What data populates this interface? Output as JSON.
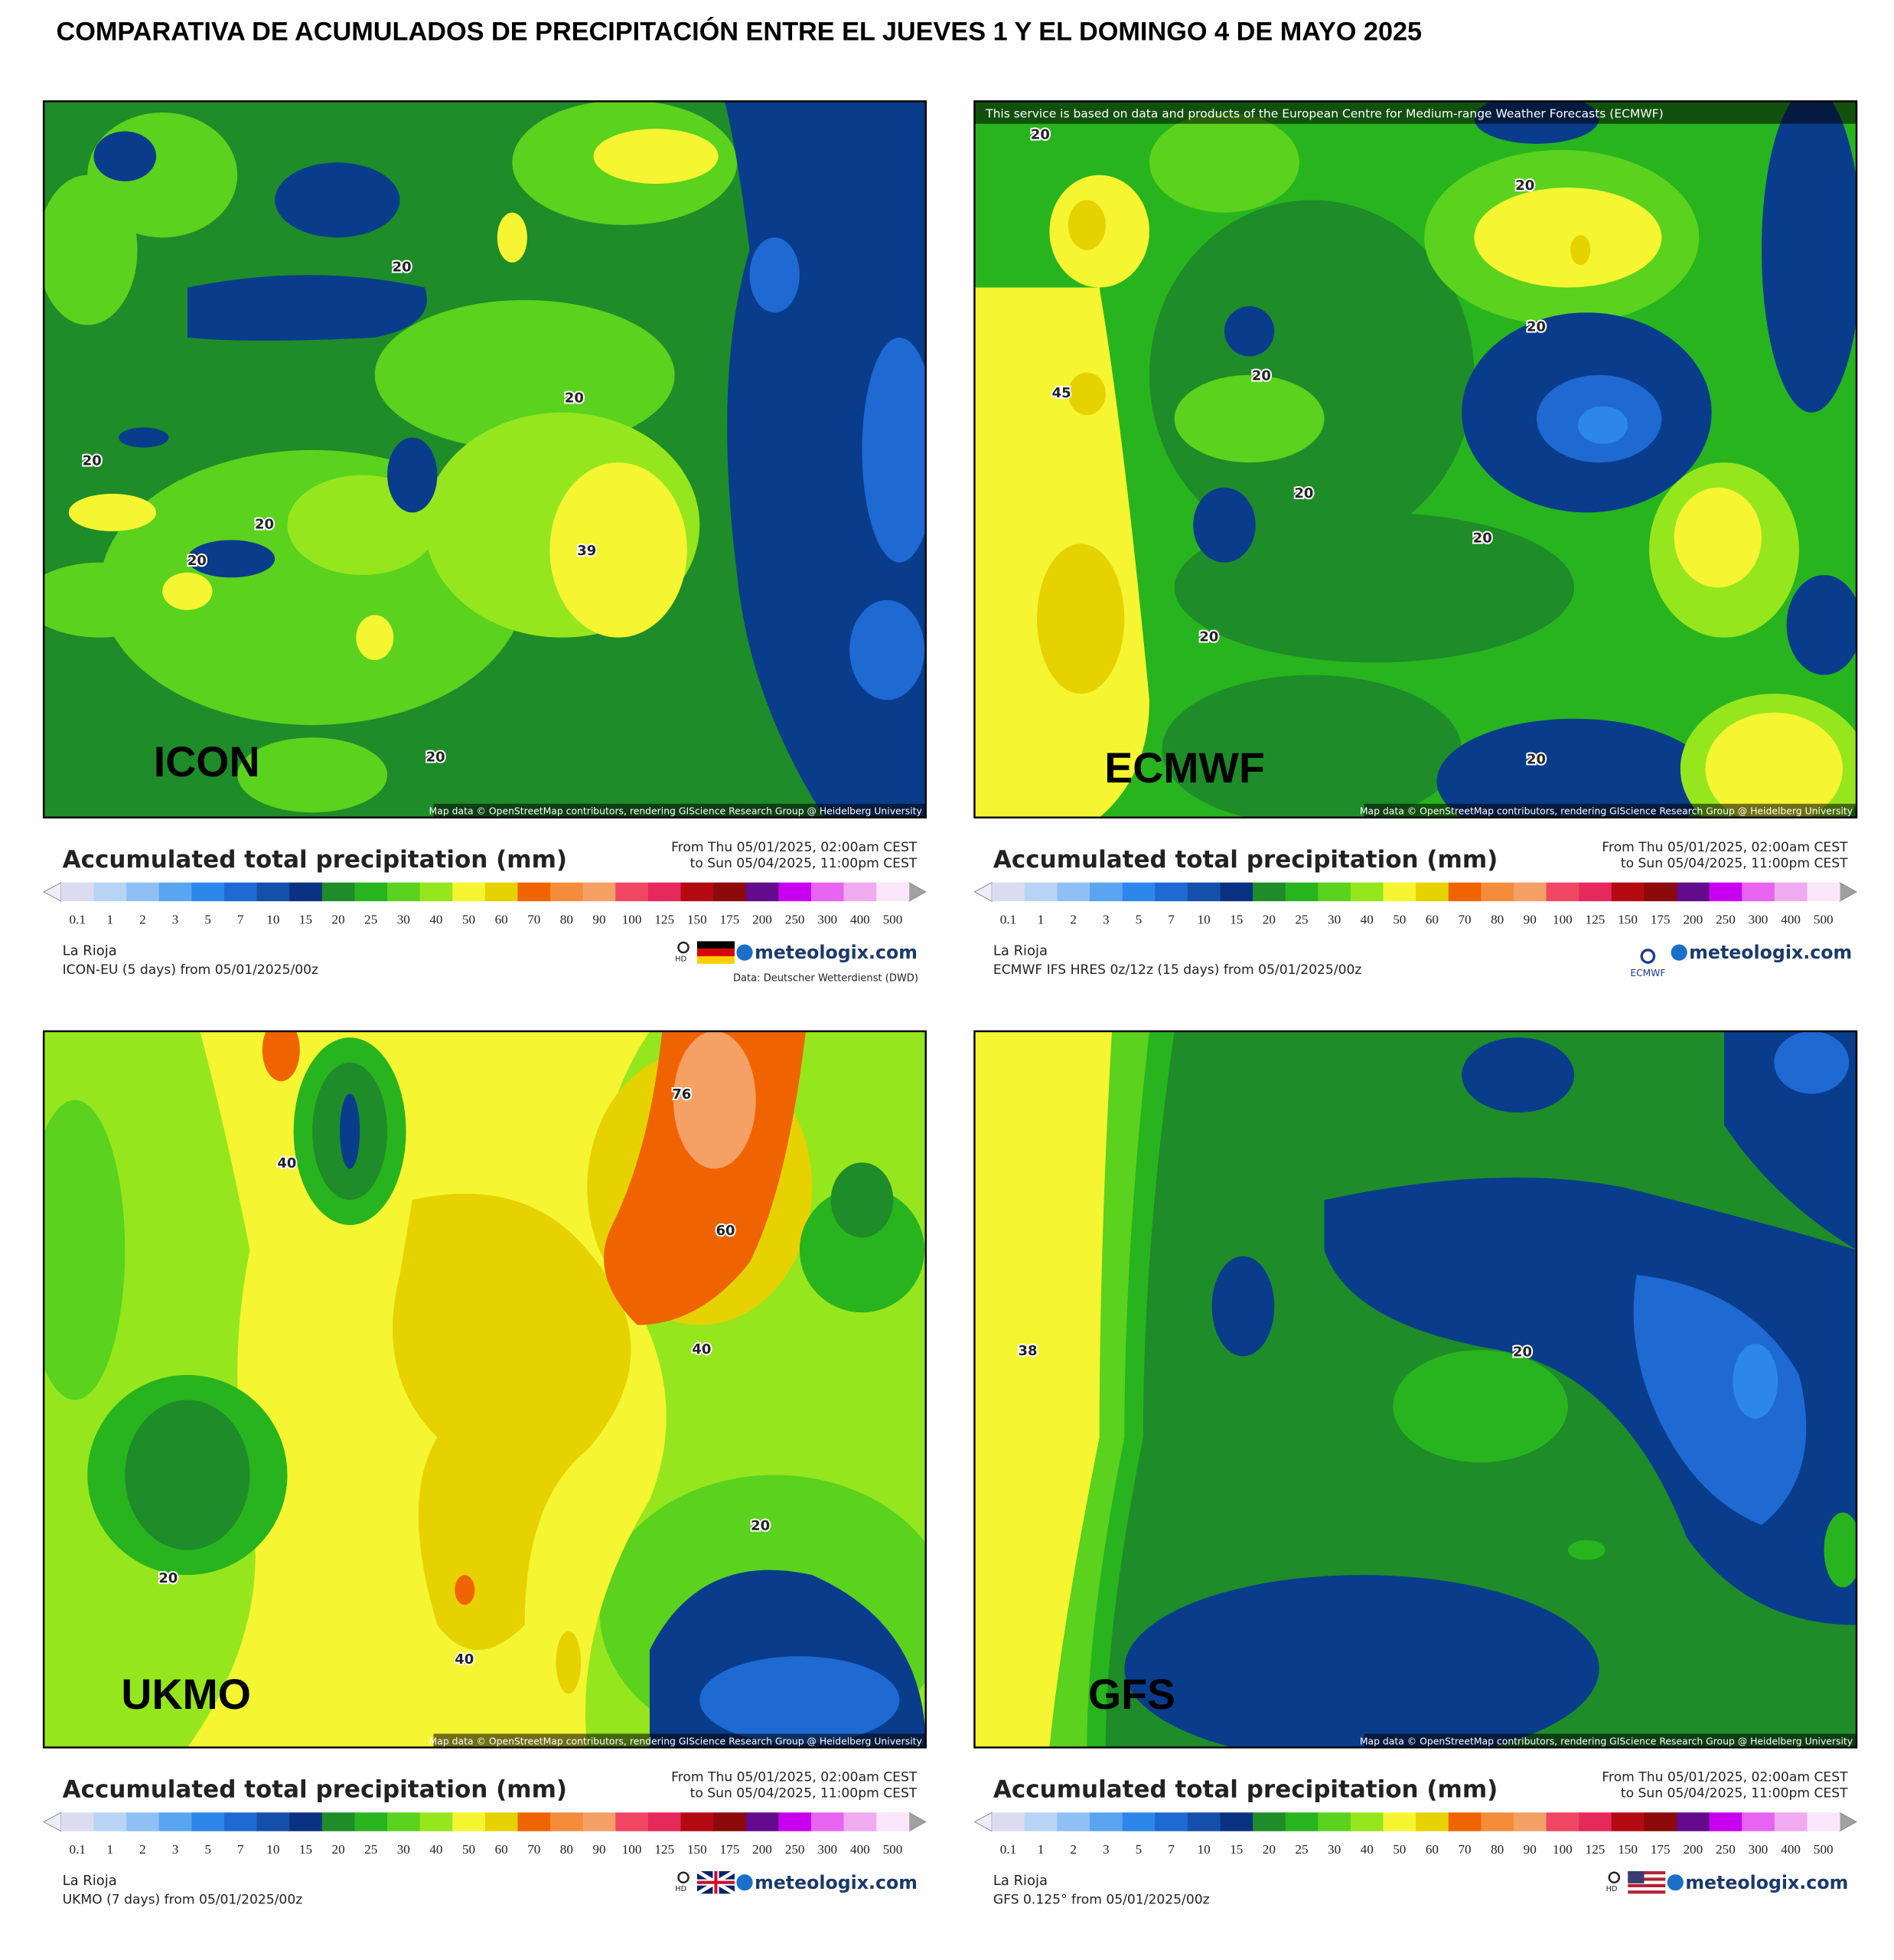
{
  "title": "COMPARATIVA DE ACUMULADOS DE PRECIPITACIÓN ENTRE EL JUEVES 1 Y EL DOMINGO 4 DE MAYO 2025",
  "map_attribution": "Map data © OpenStreetMap contributors, rendering GIScience Research Group @ Heidelberg University",
  "ecmwf_note": "This service is based on data and products of the European Centre for Medium-range Weather Forecasts (ECMWF)",
  "logo": "meteologix.com",
  "hd": "HD",
  "ecmwf_logo": "ECMWF",
  "scale": {
    "labels": [
      0.1,
      1,
      2,
      3,
      5,
      7,
      10,
      15,
      20,
      25,
      30,
      40,
      50,
      60,
      70,
      80,
      90,
      100,
      125,
      150,
      175,
      200,
      250,
      300,
      400,
      500
    ],
    "colors": [
      "#dcdcf0",
      "#b8d4f5",
      "#8fc0f5",
      "#5aa5f0",
      "#2d87eb",
      "#1e69d2",
      "#1450aa",
      "#0a3282",
      "#1e8c28",
      "#28b41e",
      "#5ad21e",
      "#96e61e",
      "#f5f532",
      "#e6d200",
      "#f06400",
      "#f58c3c",
      "#f5a064",
      "#f04664",
      "#e6285a",
      "#b40a14",
      "#8c0a0a",
      "#640a8c",
      "#c800f0",
      "#e664f0",
      "#f0aaf0",
      "#fae6fa"
    ],
    "under_color": "#eeeef8",
    "over_color": "#a0a0a0"
  },
  "panels": [
    {
      "model": "ICON",
      "legend_title": "Accumulated total precipitation (mm)",
      "from": "From Thu 05/01/2025, 02:00am CEST",
      "to": "to Sun 05/04/2025, 11:00pm CEST",
      "location": "La Rioja",
      "description": "ICON-EU (5 days) from 05/01/2025/00z",
      "credit": "Data: Deutscher Wetterdienst (DWD)",
      "contours": [
        20,
        20,
        20,
        20,
        20,
        20,
        39
      ]
    },
    {
      "model": "ECMWF",
      "legend_title": "Accumulated total precipitation (mm)",
      "from": "From Thu 05/01/2025, 02:00am CEST",
      "to": "to Sun 05/04/2025, 11:00pm CEST",
      "location": "La Rioja",
      "description": "ECMWF IFS HRES 0z/12z (15 days) from 05/01/2025/00z",
      "contours": [
        20,
        20,
        20,
        20,
        20,
        20,
        20,
        20,
        45
      ]
    },
    {
      "model": "UKMO",
      "legend_title": "Accumulated total precipitation (mm)",
      "from": "From Thu 05/01/2025, 02:00am CEST",
      "to": "to Sun 05/04/2025, 11:00pm CEST",
      "location": "La Rioja",
      "description": "UKMO (7 days) from 05/01/2025/00z",
      "contours": [
        76,
        40,
        40,
        40,
        60,
        20,
        20
      ]
    },
    {
      "model": "GFS",
      "legend_title": "Accumulated total precipitation (mm)",
      "from": "From Thu 05/01/2025, 02:00am CEST",
      "to": "to Sun 05/04/2025, 11:00pm CEST",
      "location": "La Rioja",
      "description": "GFS 0.125° from 05/01/2025/00z",
      "contours": [
        38,
        20
      ]
    }
  ]
}
